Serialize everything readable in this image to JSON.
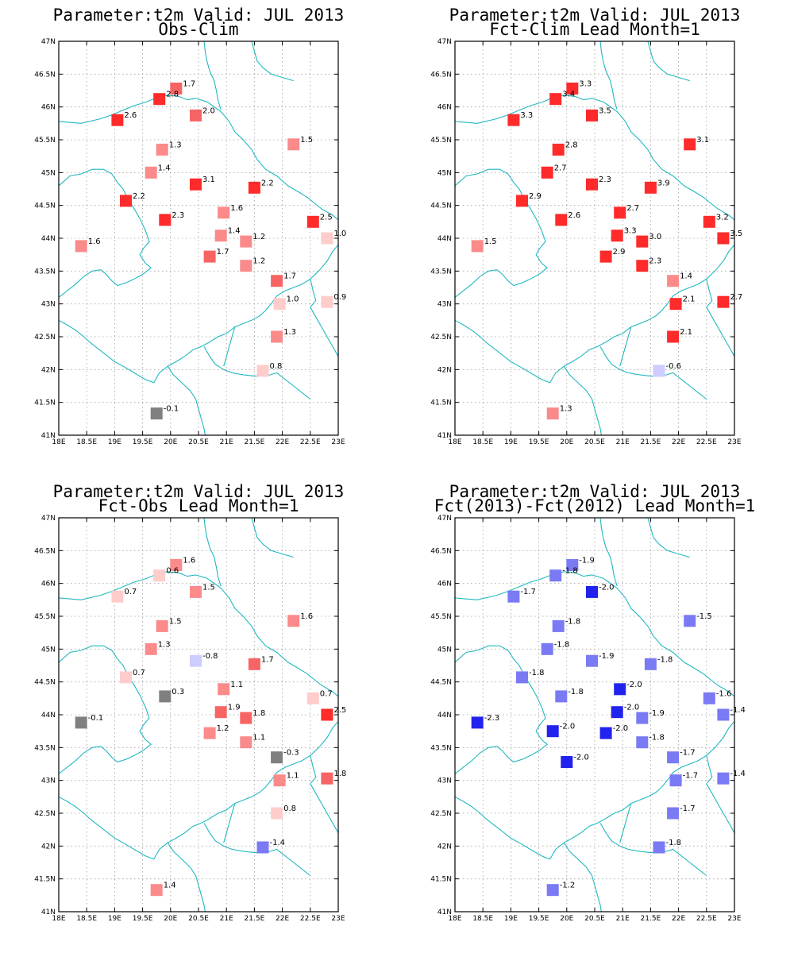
{
  "colors": {
    "coast": "#20b8c0",
    "grid": "#a0a0a0",
    "zero": "#808080",
    "red_scale": [
      "#ffcccc",
      "#fb8a8a",
      "#f76464",
      "#ff2a2a"
    ],
    "blue_scale": [
      "#ccccff",
      "#7a7af4",
      "#2222ee"
    ]
  },
  "chart_data": [
    {
      "type": "scatter",
      "title": "Parameter:t2m Valid: JUL 2013",
      "subtitle": "Obs-Clim",
      "xlim": [
        18,
        23
      ],
      "ylim": [
        41,
        47
      ],
      "xticks": [
        "18E",
        "18.5E",
        "19E",
        "19.5E",
        "20E",
        "20.5E",
        "21E",
        "21.5E",
        "22E",
        "22.5E",
        "23E"
      ],
      "yticks": [
        "41N",
        "41.5N",
        "42N",
        "42.5N",
        "43N",
        "43.5N",
        "44N",
        "44.5N",
        "45N",
        "45.5N",
        "46N",
        "46.5N",
        "47N"
      ],
      "grid": true,
      "points": [
        {
          "lon": 20.1,
          "lat": 46.28,
          "v": 1.7,
          "t": "1.7"
        },
        {
          "lon": 19.8,
          "lat": 46.12,
          "v": 2.8,
          "t": "2.8"
        },
        {
          "lon": 19.05,
          "lat": 45.8,
          "v": 2.6,
          "t": "2.6"
        },
        {
          "lon": 20.45,
          "lat": 45.87,
          "v": 2.0,
          "t": "2.0"
        },
        {
          "lon": 19.85,
          "lat": 45.35,
          "v": 1.3,
          "t": "1.3"
        },
        {
          "lon": 22.2,
          "lat": 45.43,
          "v": 1.5,
          "t": "1.5"
        },
        {
          "lon": 19.65,
          "lat": 45.0,
          "v": 1.4,
          "t": "1.4"
        },
        {
          "lon": 20.45,
          "lat": 44.82,
          "v": 3.1,
          "t": "3.1"
        },
        {
          "lon": 21.5,
          "lat": 44.77,
          "v": 2.2,
          "t": "2.2"
        },
        {
          "lon": 19.2,
          "lat": 44.57,
          "v": 2.2,
          "t": "2.2"
        },
        {
          "lon": 20.95,
          "lat": 44.39,
          "v": 1.6,
          "t": "1.6"
        },
        {
          "lon": 19.9,
          "lat": 44.28,
          "v": 2.3,
          "t": "2.3"
        },
        {
          "lon": 22.55,
          "lat": 44.25,
          "v": 2.5,
          "t": "2.5"
        },
        {
          "lon": 20.9,
          "lat": 44.04,
          "v": 1.4,
          "t": "1.4"
        },
        {
          "lon": 21.35,
          "lat": 43.95,
          "v": 1.2,
          "t": "1.2"
        },
        {
          "lon": 22.8,
          "lat": 44.0,
          "v": 1.0,
          "t": "1.0"
        },
        {
          "lon": 18.4,
          "lat": 43.88,
          "v": 1.6,
          "t": "1.6"
        },
        {
          "lon": 20.7,
          "lat": 43.72,
          "v": 1.7,
          "t": "1.7"
        },
        {
          "lon": 21.35,
          "lat": 43.58,
          "v": 1.2,
          "t": "1.2"
        },
        {
          "lon": 21.9,
          "lat": 43.35,
          "v": 1.7,
          "t": "1.7"
        },
        {
          "lon": 21.95,
          "lat": 43.0,
          "v": 1.0,
          "t": "1.0"
        },
        {
          "lon": 22.8,
          "lat": 43.03,
          "v": 0.9,
          "t": "0.9"
        },
        {
          "lon": 21.9,
          "lat": 42.5,
          "v": 1.3,
          "t": "1.3"
        },
        {
          "lon": 21.65,
          "lat": 41.98,
          "v": 0.8,
          "t": "0.8"
        },
        {
          "lon": 19.75,
          "lat": 41.33,
          "v": -0.1,
          "t": "-0.1"
        }
      ]
    },
    {
      "type": "scatter",
      "title": "Parameter:t2m Valid: JUL 2013",
      "subtitle": "Fct-Clim Lead Month=1",
      "xlim": [
        18,
        23
      ],
      "ylim": [
        41,
        47
      ],
      "xticks": [
        "18E",
        "18.5E",
        "19E",
        "19.5E",
        "20E",
        "20.5E",
        "21E",
        "21.5E",
        "22E",
        "22.5E",
        "23E"
      ],
      "yticks": [
        "41N",
        "41.5N",
        "42N",
        "42.5N",
        "43N",
        "43.5N",
        "44N",
        "44.5N",
        "45N",
        "45.5N",
        "46N",
        "46.5N",
        "47N"
      ],
      "grid": true,
      "points": [
        {
          "lon": 20.1,
          "lat": 46.28,
          "v": 3.3,
          "t": "3.3"
        },
        {
          "lon": 19.8,
          "lat": 46.12,
          "v": 3.4,
          "t": "3.4"
        },
        {
          "lon": 19.05,
          "lat": 45.8,
          "v": 3.3,
          "t": "3.3"
        },
        {
          "lon": 20.45,
          "lat": 45.87,
          "v": 3.5,
          "t": "3.5"
        },
        {
          "lon": 19.85,
          "lat": 45.35,
          "v": 2.8,
          "t": "2.8"
        },
        {
          "lon": 22.2,
          "lat": 45.43,
          "v": 3.1,
          "t": "3.1"
        },
        {
          "lon": 19.65,
          "lat": 45.0,
          "v": 2.7,
          "t": "2.7"
        },
        {
          "lon": 20.45,
          "lat": 44.82,
          "v": 2.3,
          "t": "2.3"
        },
        {
          "lon": 21.5,
          "lat": 44.77,
          "v": 3.9,
          "t": "3.9"
        },
        {
          "lon": 19.2,
          "lat": 44.57,
          "v": 2.9,
          "t": "2.9"
        },
        {
          "lon": 20.95,
          "lat": 44.39,
          "v": 2.7,
          "t": "2.7"
        },
        {
          "lon": 19.9,
          "lat": 44.28,
          "v": 2.6,
          "t": "2.6"
        },
        {
          "lon": 22.55,
          "lat": 44.25,
          "v": 3.2,
          "t": "3.2"
        },
        {
          "lon": 20.9,
          "lat": 44.04,
          "v": 3.3,
          "t": "3.3"
        },
        {
          "lon": 21.35,
          "lat": 43.95,
          "v": 3.0,
          "t": "3.0"
        },
        {
          "lon": 22.8,
          "lat": 44.0,
          "v": 3.5,
          "t": "3.5"
        },
        {
          "lon": 18.4,
          "lat": 43.88,
          "v": 1.5,
          "t": "1.5"
        },
        {
          "lon": 20.7,
          "lat": 43.72,
          "v": 2.9,
          "t": "2.9"
        },
        {
          "lon": 21.35,
          "lat": 43.58,
          "v": 2.3,
          "t": "2.3"
        },
        {
          "lon": 21.9,
          "lat": 43.35,
          "v": 1.4,
          "t": "1.4"
        },
        {
          "lon": 21.95,
          "lat": 43.0,
          "v": 2.1,
          "t": "2.1"
        },
        {
          "lon": 22.8,
          "lat": 43.03,
          "v": 2.7,
          "t": "2.7"
        },
        {
          "lon": 21.9,
          "lat": 42.5,
          "v": 2.1,
          "t": "2.1"
        },
        {
          "lon": 21.65,
          "lat": 41.98,
          "v": -0.6,
          "t": "-0.6"
        },
        {
          "lon": 19.75,
          "lat": 41.33,
          "v": 1.3,
          "t": "1.3"
        }
      ]
    },
    {
      "type": "scatter",
      "title": "Parameter:t2m Valid: JUL 2013",
      "subtitle": "Fct-Obs Lead Month=1",
      "xlim": [
        18,
        23
      ],
      "ylim": [
        41,
        47
      ],
      "xticks": [
        "18E",
        "18.5E",
        "19E",
        "19.5E",
        "20E",
        "20.5E",
        "21E",
        "21.5E",
        "22E",
        "22.5E",
        "23E"
      ],
      "yticks": [
        "41N",
        "41.5N",
        "42N",
        "42.5N",
        "43N",
        "43.5N",
        "44N",
        "44.5N",
        "45N",
        "45.5N",
        "46N",
        "46.5N",
        "47N"
      ],
      "grid": true,
      "points": [
        {
          "lon": 20.1,
          "lat": 46.28,
          "v": 1.6,
          "t": "1.6"
        },
        {
          "lon": 19.8,
          "lat": 46.12,
          "v": 0.6,
          "t": "0.6"
        },
        {
          "lon": 19.05,
          "lat": 45.8,
          "v": 0.7,
          "t": "0.7"
        },
        {
          "lon": 20.45,
          "lat": 45.87,
          "v": 1.5,
          "t": "1.5"
        },
        {
          "lon": 19.85,
          "lat": 45.35,
          "v": 1.5,
          "t": "1.5"
        },
        {
          "lon": 22.2,
          "lat": 45.43,
          "v": 1.6,
          "t": "1.6"
        },
        {
          "lon": 19.65,
          "lat": 45.0,
          "v": 1.3,
          "t": "1.3"
        },
        {
          "lon": 20.45,
          "lat": 44.82,
          "v": -0.8,
          "t": "-0.8"
        },
        {
          "lon": 21.5,
          "lat": 44.77,
          "v": 1.7,
          "t": "1.7"
        },
        {
          "lon": 19.2,
          "lat": 44.57,
          "v": 0.7,
          "t": "0.7"
        },
        {
          "lon": 20.95,
          "lat": 44.39,
          "v": 1.1,
          "t": "1.1"
        },
        {
          "lon": 19.9,
          "lat": 44.28,
          "v": 0.3,
          "t": "0.3"
        },
        {
          "lon": 22.55,
          "lat": 44.25,
          "v": 0.7,
          "t": "0.7"
        },
        {
          "lon": 20.9,
          "lat": 44.04,
          "v": 1.9,
          "t": "1.9"
        },
        {
          "lon": 21.35,
          "lat": 43.95,
          "v": 1.8,
          "t": "1.8"
        },
        {
          "lon": 22.8,
          "lat": 44.0,
          "v": 2.5,
          "t": "2.5"
        },
        {
          "lon": 18.4,
          "lat": 43.88,
          "v": -0.1,
          "t": "-0.1"
        },
        {
          "lon": 20.7,
          "lat": 43.72,
          "v": 1.2,
          "t": "1.2"
        },
        {
          "lon": 21.35,
          "lat": 43.58,
          "v": 1.1,
          "t": "1.1"
        },
        {
          "lon": 21.9,
          "lat": 43.35,
          "v": -0.3,
          "t": "-0.3"
        },
        {
          "lon": 21.95,
          "lat": 43.0,
          "v": 1.1,
          "t": "1.1"
        },
        {
          "lon": 22.8,
          "lat": 43.03,
          "v": 1.8,
          "t": "1.8"
        },
        {
          "lon": 21.9,
          "lat": 42.5,
          "v": 0.8,
          "t": "0.8"
        },
        {
          "lon": 21.65,
          "lat": 41.98,
          "v": -1.4,
          "t": "-1.4"
        },
        {
          "lon": 19.75,
          "lat": 41.33,
          "v": 1.4,
          "t": "1.4"
        }
      ]
    },
    {
      "type": "scatter",
      "title": "Parameter:t2m Valid: JUL 2013",
      "subtitle": "Fct(2013)-Fct(2012) Lead Month=1",
      "xlim": [
        18,
        23
      ],
      "ylim": [
        41,
        47
      ],
      "xticks": [
        "18E",
        "18.5E",
        "19E",
        "19.5E",
        "20E",
        "20.5E",
        "21E",
        "21.5E",
        "22E",
        "22.5E",
        "23E"
      ],
      "yticks": [
        "41N",
        "41.5N",
        "42N",
        "42.5N",
        "43N",
        "43.5N",
        "44N",
        "44.5N",
        "45N",
        "45.5N",
        "46N",
        "46.5N",
        "47N"
      ],
      "grid": true,
      "points": [
        {
          "lon": 20.1,
          "lat": 46.28,
          "v": -1.9,
          "t": "-1.9"
        },
        {
          "lon": 19.8,
          "lat": 46.12,
          "v": -1.8,
          "t": "-1.8"
        },
        {
          "lon": 19.05,
          "lat": 45.8,
          "v": -1.7,
          "t": "-1.7"
        },
        {
          "lon": 20.45,
          "lat": 45.87,
          "v": -2.0,
          "t": "-2.0"
        },
        {
          "lon": 19.85,
          "lat": 45.35,
          "v": -1.8,
          "t": "-1.8"
        },
        {
          "lon": 22.2,
          "lat": 45.43,
          "v": -1.5,
          "t": "-1.5"
        },
        {
          "lon": 19.65,
          "lat": 45.0,
          "v": -1.8,
          "t": "-1.8"
        },
        {
          "lon": 20.45,
          "lat": 44.82,
          "v": -1.9,
          "t": "-1.9"
        },
        {
          "lon": 21.5,
          "lat": 44.77,
          "v": -1.8,
          "t": "-1.8"
        },
        {
          "lon": 19.2,
          "lat": 44.57,
          "v": -1.8,
          "t": "-1.8"
        },
        {
          "lon": 20.95,
          "lat": 44.39,
          "v": -2.0,
          "t": "-2.0"
        },
        {
          "lon": 19.9,
          "lat": 44.28,
          "v": -1.8,
          "t": "-1.8"
        },
        {
          "lon": 22.55,
          "lat": 44.25,
          "v": -1.6,
          "t": "-1.6"
        },
        {
          "lon": 20.9,
          "lat": 44.04,
          "v": -2.0,
          "t": "-2.0"
        },
        {
          "lon": 21.35,
          "lat": 43.95,
          "v": -1.9,
          "t": "-1.9"
        },
        {
          "lon": 22.8,
          "lat": 44.0,
          "v": -1.4,
          "t": "-1.4"
        },
        {
          "lon": 18.4,
          "lat": 43.88,
          "v": -2.3,
          "t": "-2.3"
        },
        {
          "lon": 19.75,
          "lat": 43.75,
          "v": -2.0,
          "t": "-2.0"
        },
        {
          "lon": 20.7,
          "lat": 43.72,
          "v": -2.0,
          "t": "-2.0"
        },
        {
          "lon": 21.35,
          "lat": 43.58,
          "v": -1.8,
          "t": "-1.8"
        },
        {
          "lon": 21.9,
          "lat": 43.35,
          "v": -1.7,
          "t": "-1.7"
        },
        {
          "lon": 20.0,
          "lat": 43.28,
          "v": -2.0,
          "t": "-2.0"
        },
        {
          "lon": 21.95,
          "lat": 43.0,
          "v": -1.7,
          "t": "-1.7"
        },
        {
          "lon": 22.8,
          "lat": 43.03,
          "v": -1.4,
          "t": "-1.4"
        },
        {
          "lon": 21.9,
          "lat": 42.5,
          "v": -1.7,
          "t": "-1.7"
        },
        {
          "lon": 21.65,
          "lat": 41.98,
          "v": -1.8,
          "t": "-1.8"
        },
        {
          "lon": 19.75,
          "lat": 41.33,
          "v": -1.2,
          "t": "-1.2"
        }
      ]
    }
  ]
}
